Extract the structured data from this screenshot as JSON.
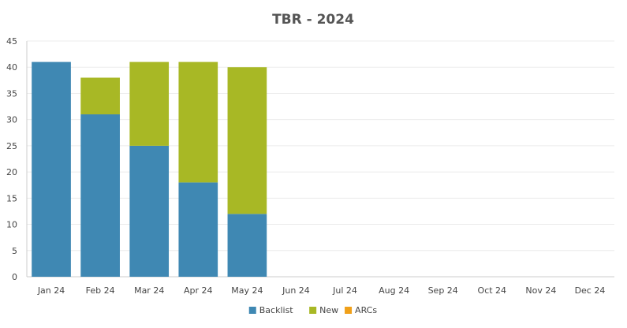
{
  "chart_data": {
    "type": "bar",
    "stacked": true,
    "title": "TBR - 2024",
    "xlabel": "",
    "ylabel": "",
    "categories": [
      "Jan 24",
      "Feb 24",
      "Mar 24",
      "Apr 24",
      "May 24",
      "Jun 24",
      "Jul 24",
      "Aug 24",
      "Sep 24",
      "Oct 24",
      "Nov 24",
      "Dec 24"
    ],
    "series": [
      {
        "name": "Backlist",
        "color": "#3f88b3",
        "values": [
          41,
          31,
          25,
          18,
          12,
          0,
          0,
          0,
          0,
          0,
          0,
          0
        ]
      },
      {
        "name": "New",
        "color": "#a8b825",
        "values": [
          0,
          7,
          16,
          23,
          28,
          0,
          0,
          0,
          0,
          0,
          0,
          0
        ]
      },
      {
        "name": "ARCs",
        "color": "#f0a019",
        "values": [
          0,
          0,
          0,
          0,
          0,
          0,
          0,
          0,
          0,
          0,
          0,
          0
        ]
      }
    ],
    "yticks": [
      0,
      5,
      10,
      15,
      20,
      25,
      30,
      35,
      40,
      45
    ],
    "ylim": [
      0,
      45
    ],
    "grid": true,
    "legend_position": "bottom"
  }
}
